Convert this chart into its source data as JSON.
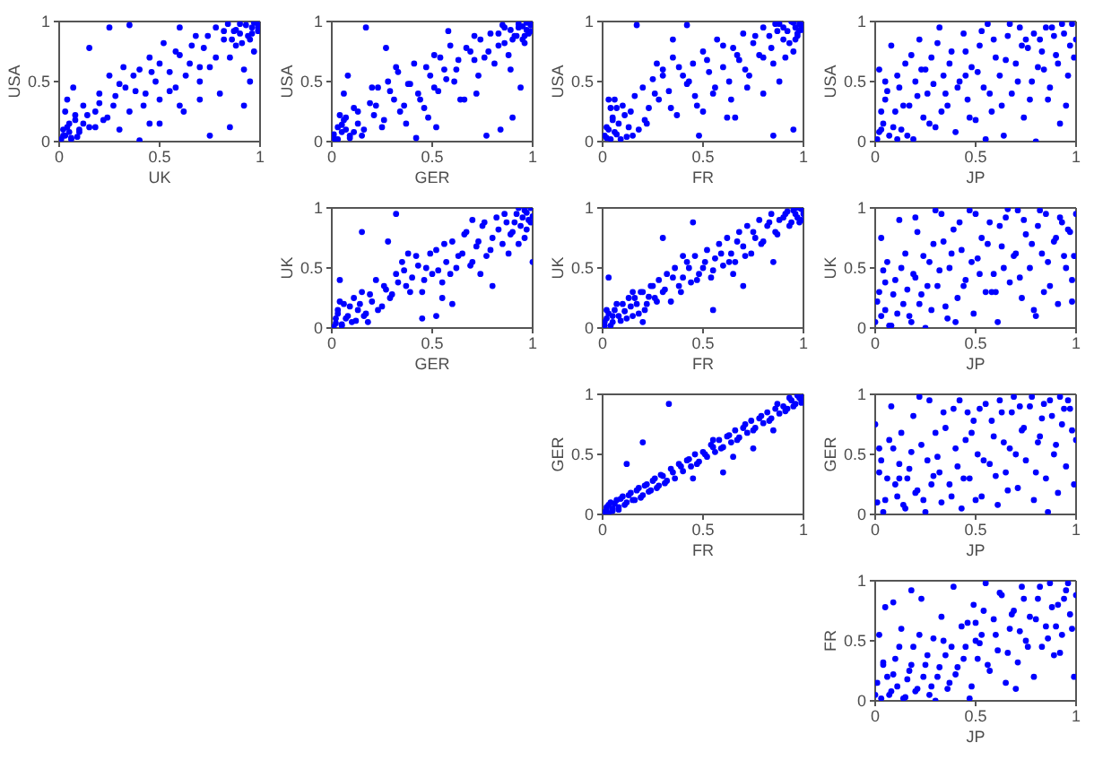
{
  "chart_data": [
    {
      "type": "scatter",
      "xlabel": "UK",
      "ylabel": "USA",
      "color": "#0000ff",
      "marker": "circle",
      "xlim": [
        0,
        1
      ],
      "ylim": [
        0,
        1
      ],
      "xticks": [
        0,
        0.5,
        1
      ],
      "yticks": [
        0,
        0.5,
        1
      ],
      "x": [
        0.01,
        0.02,
        0.03,
        0.05,
        0.06,
        0.08,
        0.1,
        0.12,
        0.04,
        0.15,
        0.18,
        0.2,
        0.22,
        0.25,
        0.27,
        0.3,
        0.32,
        0.35,
        0.38,
        0.4,
        0.42,
        0.45,
        0.48,
        0.5,
        0.52,
        0.55,
        0.58,
        0.6,
        0.62,
        0.65,
        0.68,
        0.7,
        0.72,
        0.75,
        0.78,
        0.8,
        0.82,
        0.85,
        0.87,
        0.9,
        0.92,
        0.94,
        0.96,
        0.98,
        0.99,
        1.0,
        0.97,
        0.88,
        0.15,
        0.25,
        0.35,
        0.75,
        0.85,
        0.92,
        0.4,
        0.07,
        0.6,
        0.3,
        0.5,
        0.95,
        0.02,
        0.04,
        0.06,
        0.08,
        0.1,
        0.03,
        0.05,
        0.12,
        0.14,
        0.09,
        0.2,
        0.24,
        0.28,
        0.33,
        0.37,
        0.43,
        0.46,
        0.5,
        0.55,
        0.58,
        0.63,
        0.66,
        0.7,
        0.74,
        0.78,
        0.82,
        0.86,
        0.9,
        0.93,
        0.95,
        0.97,
        0.99,
        0.84,
        0.88,
        0.91,
        0.96,
        0.6,
        0.45,
        0.18,
        0.7
      ],
      "values": [
        0.02,
        0.1,
        0.05,
        0.15,
        0.03,
        0.22,
        0.08,
        0.3,
        0.35,
        0.12,
        0.25,
        0.4,
        0.18,
        0.55,
        0.3,
        0.48,
        0.62,
        0.25,
        0.42,
        0.6,
        0.3,
        0.7,
        0.5,
        0.35,
        0.82,
        0.58,
        0.45,
        0.72,
        0.25,
        0.65,
        0.88,
        0.5,
        0.78,
        0.62,
        0.95,
        0.4,
        0.85,
        0.7,
        0.92,
        0.98,
        0.6,
        0.88,
        0.95,
        0.99,
        0.92,
        0.97,
        0.75,
        0.8,
        0.78,
        0.95,
        0.97,
        0.05,
        0.12,
        0.3,
        0.01,
        0.45,
        0.95,
        0.1,
        0.15,
        0.5,
        0.05,
        0.12,
        0.02,
        0.18,
        0.1,
        0.25,
        0.08,
        0.15,
        0.22,
        0.04,
        0.32,
        0.2,
        0.38,
        0.45,
        0.55,
        0.4,
        0.58,
        0.65,
        0.42,
        0.75,
        0.55,
        0.8,
        0.62,
        0.88,
        0.7,
        0.92,
        0.85,
        0.9,
        0.97,
        0.85,
        0.99,
        0.95,
        0.98,
        0.93,
        0.82,
        0.9,
        0.3,
        0.15,
        0.12,
        0.35
      ]
    },
    {
      "type": "scatter",
      "xlabel": "GER",
      "ylabel": "USA",
      "color": "#0000ff",
      "marker": "circle",
      "xlim": [
        0,
        1
      ],
      "ylim": [
        0,
        1
      ],
      "xticks": [
        0,
        0.5,
        1
      ],
      "yticks": [
        0,
        0.5,
        1
      ],
      "x": [
        0.01,
        0.03,
        0.02,
        0.05,
        0.07,
        0.09,
        0.11,
        0.13,
        0.06,
        0.16,
        0.19,
        0.21,
        0.23,
        0.26,
        0.28,
        0.31,
        0.33,
        0.36,
        0.39,
        0.41,
        0.43,
        0.46,
        0.49,
        0.51,
        0.53,
        0.56,
        0.59,
        0.61,
        0.63,
        0.66,
        0.69,
        0.71,
        0.73,
        0.76,
        0.79,
        0.81,
        0.83,
        0.86,
        0.88,
        0.91,
        0.93,
        0.95,
        0.97,
        0.99,
        0.98,
        1.0,
        0.96,
        0.89,
        0.17,
        0.27,
        0.37,
        0.77,
        0.84,
        0.9,
        0.42,
        0.08,
        0.58,
        0.32,
        0.52,
        0.94,
        0.01,
        0.03,
        0.05,
        0.07,
        0.09,
        0.04,
        0.06,
        0.11,
        0.13,
        0.15,
        0.22,
        0.25,
        0.29,
        0.34,
        0.38,
        0.44,
        0.47,
        0.51,
        0.54,
        0.57,
        0.62,
        0.67,
        0.71,
        0.74,
        0.78,
        0.83,
        0.86,
        0.89,
        0.92,
        0.95,
        0.97,
        0.99,
        0.85,
        0.9,
        0.93,
        0.96,
        0.64,
        0.48,
        0.2,
        0.72
      ],
      "values": [
        0.03,
        0.12,
        0.01,
        0.08,
        0.2,
        0.05,
        0.28,
        0.15,
        0.4,
        0.1,
        0.32,
        0.22,
        0.45,
        0.18,
        0.5,
        0.35,
        0.58,
        0.3,
        0.48,
        0.65,
        0.4,
        0.28,
        0.55,
        0.72,
        0.42,
        0.6,
        0.8,
        0.5,
        0.68,
        0.35,
        0.75,
        0.88,
        0.55,
        0.7,
        0.9,
        0.65,
        0.8,
        0.95,
        0.72,
        0.88,
        0.98,
        0.85,
        0.93,
        0.97,
        0.9,
        1.0,
        0.82,
        0.6,
        0.95,
        0.78,
        0.15,
        0.05,
        0.1,
        0.2,
        0.03,
        0.55,
        0.92,
        0.62,
        0.12,
        0.45,
        0.06,
        0.02,
        0.14,
        0.1,
        0.03,
        0.22,
        0.18,
        0.08,
        0.25,
        0.05,
        0.3,
        0.12,
        0.42,
        0.25,
        0.48,
        0.35,
        0.62,
        0.45,
        0.7,
        0.52,
        0.6,
        0.78,
        0.68,
        0.85,
        0.75,
        0.9,
        0.82,
        0.93,
        0.88,
        0.96,
        0.99,
        0.92,
        0.97,
        0.85,
        0.95,
        0.88,
        0.35,
        0.2,
        0.45,
        0.4
      ]
    },
    {
      "type": "scatter",
      "xlabel": "FR",
      "ylabel": "USA",
      "color": "#0000ff",
      "marker": "circle",
      "xlim": [
        0,
        1
      ],
      "ylim": [
        0,
        1
      ],
      "xticks": [
        0,
        0.5,
        1
      ],
      "yticks": [
        0,
        0.5,
        1
      ],
      "x": [
        0.01,
        0.02,
        0.04,
        0.05,
        0.06,
        0.08,
        0.1,
        0.12,
        0.14,
        0.16,
        0.18,
        0.2,
        0.23,
        0.25,
        0.28,
        0.3,
        0.33,
        0.35,
        0.37,
        0.4,
        0.42,
        0.45,
        0.47,
        0.5,
        0.53,
        0.55,
        0.57,
        0.6,
        0.63,
        0.65,
        0.68,
        0.7,
        0.73,
        0.75,
        0.78,
        0.8,
        0.83,
        0.85,
        0.88,
        0.9,
        0.92,
        0.94,
        0.96,
        0.97,
        0.98,
        0.99,
        1.0,
        0.95,
        0.17,
        0.42,
        0.85,
        0.95,
        0.03,
        0.22,
        0.62,
        0.72,
        0.48,
        0.88,
        0.35,
        0.07,
        0.02,
        0.03,
        0.05,
        0.07,
        0.09,
        0.11,
        0.04,
        0.13,
        0.15,
        0.06,
        0.21,
        0.26,
        0.3,
        0.34,
        0.38,
        0.43,
        0.46,
        0.52,
        0.56,
        0.6,
        0.64,
        0.67,
        0.71,
        0.76,
        0.8,
        0.84,
        0.87,
        0.9,
        0.93,
        0.95,
        0.97,
        0.99,
        0.96,
        0.98,
        0.91,
        0.86,
        0.5,
        0.66,
        0.27,
        0.8
      ],
      "values": [
        0.05,
        0.12,
        0.02,
        0.2,
        0.08,
        0.15,
        0.3,
        0.04,
        0.25,
        0.38,
        0.1,
        0.45,
        0.28,
        0.52,
        0.35,
        0.6,
        0.42,
        0.7,
        0.22,
        0.55,
        0.48,
        0.65,
        0.3,
        0.75,
        0.58,
        0.4,
        0.85,
        0.62,
        0.5,
        0.78,
        0.68,
        0.9,
        0.55,
        0.82,
        0.72,
        0.95,
        0.88,
        0.65,
        0.98,
        0.85,
        0.92,
        1.0,
        0.95,
        0.88,
        0.98,
        0.93,
        0.97,
        0.75,
        0.97,
        0.97,
        0.05,
        0.1,
        0.35,
        0.15,
        0.2,
        0.45,
        0.05,
        0.5,
        0.85,
        0.28,
        0.03,
        0.1,
        0.18,
        0.06,
        0.02,
        0.22,
        0.28,
        0.12,
        0.05,
        0.35,
        0.18,
        0.4,
        0.55,
        0.28,
        0.62,
        0.5,
        0.38,
        0.68,
        0.45,
        0.8,
        0.35,
        0.72,
        0.6,
        0.88,
        0.7,
        0.78,
        0.92,
        0.95,
        0.82,
        0.99,
        0.9,
        0.97,
        0.85,
        0.93,
        0.7,
        0.98,
        0.25,
        0.2,
        0.65,
        0.4
      ]
    },
    {
      "type": "scatter",
      "xlabel": "JP",
      "ylabel": "USA",
      "color": "#0000ff",
      "marker": "circle",
      "xlim": [
        0,
        1
      ],
      "ylim": [
        0,
        1
      ],
      "xticks": [
        0,
        0.5,
        1
      ],
      "yticks": [
        0,
        0.5,
        1
      ],
      "x": [
        0.01,
        0.02,
        0.04,
        0.05,
        0.07,
        0.08,
        0.1,
        0.12,
        0.13,
        0.15,
        0.17,
        0.19,
        0.2,
        0.22,
        0.24,
        0.26,
        0.28,
        0.3,
        0.32,
        0.34,
        0.36,
        0.38,
        0.4,
        0.42,
        0.44,
        0.46,
        0.48,
        0.5,
        0.52,
        0.54,
        0.56,
        0.58,
        0.6,
        0.62,
        0.64,
        0.66,
        0.68,
        0.7,
        0.72,
        0.74,
        0.76,
        0.78,
        0.8,
        0.82,
        0.84,
        0.86,
        0.88,
        0.9,
        0.92,
        0.94,
        0.96,
        0.98,
        1.0,
        0.03,
        0.11,
        0.35,
        0.55,
        0.75,
        0.95,
        0.25,
        0.02,
        0.03,
        0.06,
        0.09,
        0.11,
        0.14,
        0.16,
        0.18,
        0.21,
        0.23,
        0.27,
        0.29,
        0.31,
        0.33,
        0.37,
        0.41,
        0.45,
        0.47,
        0.51,
        0.53,
        0.57,
        0.59,
        0.63,
        0.65,
        0.67,
        0.71,
        0.73,
        0.77,
        0.79,
        0.81,
        0.83,
        0.85,
        0.87,
        0.89,
        0.91,
        0.93,
        0.97,
        0.99,
        0.05,
        0.45
      ],
      "values": [
        0.02,
        0.6,
        0.15,
        0.35,
        0.05,
        0.8,
        0.25,
        0.45,
        0.1,
        0.65,
        0.3,
        0.02,
        0.5,
        0.85,
        0.2,
        0.4,
        0.7,
        0.12,
        0.95,
        0.55,
        0.3,
        0.75,
        0.08,
        0.5,
        0.9,
        0.35,
        0.62,
        0.18,
        0.8,
        0.45,
        0.98,
        0.25,
        0.7,
        0.55,
        0.05,
        0.88,
        0.4,
        0.65,
        0.95,
        0.2,
        0.78,
        0.5,
        0.0,
        0.85,
        0.6,
        0.35,
        0.95,
        0.72,
        0.15,
        0.9,
        0.55,
        0.98,
        0.85,
        0.1,
        0.02,
        0.4,
        0.02,
        0.85,
        0.3,
        0.6,
        0.08,
        0.25,
        0.42,
        0.12,
        0.55,
        0.3,
        0.05,
        0.72,
        0.38,
        0.6,
        0.15,
        0.48,
        0.82,
        0.25,
        0.65,
        0.45,
        0.75,
        0.2,
        0.58,
        0.92,
        0.4,
        0.85,
        0.3,
        0.68,
        0.98,
        0.5,
        0.8,
        0.35,
        0.9,
        0.62,
        0.75,
        0.95,
        0.45,
        0.88,
        0.65,
        0.98,
        0.8,
        0.7,
        0.5,
        0.55
      ]
    },
    {
      "type": "scatter",
      "xlabel": "GER",
      "ylabel": "UK",
      "color": "#0000ff",
      "marker": "circle",
      "xlim": [
        0,
        1
      ],
      "ylim": [
        0,
        1
      ],
      "xticks": [
        0,
        0.5,
        1
      ],
      "yticks": [
        0,
        0.5,
        1
      ],
      "x": [
        0.01,
        0.02,
        0.03,
        0.05,
        0.06,
        0.08,
        0.1,
        0.11,
        0.13,
        0.15,
        0.17,
        0.2,
        0.22,
        0.25,
        0.27,
        0.3,
        0.32,
        0.35,
        0.37,
        0.4,
        0.42,
        0.45,
        0.47,
        0.5,
        0.52,
        0.55,
        0.57,
        0.6,
        0.62,
        0.65,
        0.67,
        0.7,
        0.72,
        0.75,
        0.77,
        0.8,
        0.82,
        0.85,
        0.87,
        0.9,
        0.92,
        0.94,
        0.96,
        0.98,
        0.99,
        1.0,
        0.97,
        0.32,
        0.15,
        0.8,
        1.0,
        0.04,
        0.45,
        0.6,
        0.18,
        0.88,
        0.28,
        0.7,
        0.52,
        0.93,
        0.02,
        0.03,
        0.05,
        0.07,
        0.09,
        0.04,
        0.12,
        0.14,
        0.16,
        0.19,
        0.23,
        0.26,
        0.29,
        0.33,
        0.36,
        0.39,
        0.43,
        0.46,
        0.49,
        0.53,
        0.56,
        0.59,
        0.63,
        0.66,
        0.69,
        0.73,
        0.76,
        0.79,
        0.83,
        0.86,
        0.89,
        0.91,
        0.93,
        0.95,
        0.97,
        0.99,
        0.96,
        0.55,
        0.38,
        0.74
      ],
      "values": [
        0.01,
        0.08,
        0.15,
        0.03,
        0.2,
        0.1,
        0.05,
        0.25,
        0.15,
        0.3,
        0.12,
        0.22,
        0.4,
        0.18,
        0.32,
        0.28,
        0.45,
        0.55,
        0.35,
        0.42,
        0.6,
        0.3,
        0.5,
        0.45,
        0.65,
        0.38,
        0.55,
        0.72,
        0.5,
        0.62,
        0.8,
        0.55,
        0.68,
        0.85,
        0.6,
        0.75,
        0.92,
        0.7,
        0.88,
        0.8,
        0.95,
        0.85,
        0.98,
        0.9,
        1.0,
        0.93,
        0.82,
        0.95,
        0.8,
        0.35,
        0.55,
        0.4,
        0.08,
        0.2,
        0.05,
        0.62,
        0.72,
        0.9,
        0.1,
        0.7,
        0.04,
        0.12,
        0.02,
        0.08,
        0.18,
        0.22,
        0.06,
        0.2,
        0.1,
        0.28,
        0.15,
        0.35,
        0.25,
        0.38,
        0.48,
        0.3,
        0.52,
        0.4,
        0.62,
        0.48,
        0.7,
        0.45,
        0.6,
        0.78,
        0.52,
        0.72,
        0.88,
        0.65,
        0.82,
        0.95,
        0.78,
        0.88,
        1.0,
        0.92,
        0.96,
        0.88,
        0.75,
        0.25,
        0.62,
        0.45
      ]
    },
    {
      "type": "scatter",
      "xlabel": "FR",
      "ylabel": "UK",
      "color": "#0000ff",
      "marker": "circle",
      "xlim": [
        0,
        1
      ],
      "ylim": [
        0,
        1
      ],
      "xticks": [
        0,
        0.5,
        1
      ],
      "yticks": [
        0,
        0.5,
        1
      ],
      "x": [
        0.01,
        0.02,
        0.03,
        0.05,
        0.06,
        0.08,
        0.1,
        0.12,
        0.14,
        0.16,
        0.18,
        0.2,
        0.22,
        0.24,
        0.26,
        0.28,
        0.3,
        0.32,
        0.34,
        0.36,
        0.38,
        0.4,
        0.42,
        0.44,
        0.46,
        0.48,
        0.5,
        0.52,
        0.54,
        0.56,
        0.58,
        0.6,
        0.62,
        0.64,
        0.66,
        0.68,
        0.7,
        0.72,
        0.74,
        0.76,
        0.78,
        0.8,
        0.82,
        0.84,
        0.86,
        0.88,
        0.9,
        0.92,
        0.94,
        0.96,
        0.98,
        1.0,
        0.99,
        0.03,
        0.3,
        0.55,
        0.7,
        0.85,
        0.45,
        0.2,
        0.01,
        0.02,
        0.04,
        0.05,
        0.07,
        0.09,
        0.11,
        0.13,
        0.15,
        0.17,
        0.19,
        0.21,
        0.23,
        0.25,
        0.27,
        0.31,
        0.35,
        0.39,
        0.43,
        0.47,
        0.51,
        0.55,
        0.59,
        0.63,
        0.67,
        0.71,
        0.75,
        0.79,
        0.83,
        0.87,
        0.91,
        0.93,
        0.95,
        0.97,
        0.99,
        0.98,
        0.96,
        0.65,
        0.4,
        0.15
      ],
      "values": [
        0.02,
        0.08,
        0.12,
        0.05,
        0.15,
        0.1,
        0.2,
        0.08,
        0.18,
        0.25,
        0.12,
        0.3,
        0.2,
        0.35,
        0.25,
        0.4,
        0.3,
        0.45,
        0.22,
        0.5,
        0.35,
        0.42,
        0.55,
        0.38,
        0.6,
        0.45,
        0.5,
        0.65,
        0.42,
        0.58,
        0.7,
        0.52,
        0.75,
        0.62,
        0.55,
        0.8,
        0.68,
        0.85,
        0.62,
        0.75,
        0.9,
        0.72,
        0.85,
        0.95,
        0.8,
        0.9,
        0.92,
        0.97,
        0.88,
        0.95,
        1.0,
        0.95,
        0.9,
        0.42,
        0.75,
        0.15,
        0.35,
        0.55,
        0.88,
        0.05,
        0.05,
        0.15,
        0.02,
        0.1,
        0.2,
        0.06,
        0.14,
        0.25,
        0.1,
        0.2,
        0.3,
        0.15,
        0.26,
        0.35,
        0.22,
        0.32,
        0.42,
        0.3,
        0.5,
        0.4,
        0.55,
        0.48,
        0.62,
        0.55,
        0.72,
        0.6,
        0.8,
        0.7,
        0.88,
        0.78,
        0.95,
        0.85,
        0.98,
        0.92,
        0.99,
        0.88,
        1.0,
        0.45,
        0.6,
        0.3
      ]
    },
    {
      "type": "scatter",
      "xlabel": "JP",
      "ylabel": "UK",
      "color": "#0000ff",
      "marker": "circle",
      "xlim": [
        0,
        1
      ],
      "ylim": [
        0,
        1
      ],
      "xticks": [
        0,
        0.5,
        1
      ],
      "yticks": [
        0,
        0.5,
        1
      ],
      "x": [
        0.0,
        0.02,
        0.03,
        0.05,
        0.06,
        0.08,
        0.1,
        0.12,
        0.14,
        0.15,
        0.17,
        0.19,
        0.21,
        0.23,
        0.25,
        0.27,
        0.29,
        0.31,
        0.33,
        0.35,
        0.37,
        0.39,
        0.41,
        0.43,
        0.45,
        0.47,
        0.49,
        0.51,
        0.53,
        0.55,
        0.57,
        0.59,
        0.61,
        0.63,
        0.65,
        0.67,
        0.69,
        0.71,
        0.73,
        0.75,
        0.77,
        0.79,
        0.81,
        0.83,
        0.85,
        0.87,
        0.89,
        0.91,
        0.93,
        0.95,
        0.97,
        0.99,
        1.0,
        0.04,
        0.2,
        0.4,
        0.6,
        0.8,
        0.98,
        0.3,
        0.01,
        0.03,
        0.05,
        0.07,
        0.09,
        0.11,
        0.13,
        0.16,
        0.18,
        0.2,
        0.22,
        0.24,
        0.26,
        0.28,
        0.32,
        0.34,
        0.36,
        0.38,
        0.42,
        0.44,
        0.48,
        0.5,
        0.52,
        0.56,
        0.58,
        0.62,
        0.64,
        0.66,
        0.7,
        0.72,
        0.74,
        0.78,
        0.82,
        0.84,
        0.86,
        0.9,
        0.92,
        0.94,
        0.96,
        0.98
      ],
      "values": [
        0.05,
        0.3,
        0.75,
        0.15,
        0.55,
        0.02,
        0.4,
        0.9,
        0.2,
        0.62,
        0.1,
        0.45,
        0.8,
        0.28,
        0.0,
        0.55,
        0.7,
        0.35,
        0.95,
        0.18,
        0.5,
        0.82,
        0.25,
        0.65,
        0.4,
        0.98,
        0.12,
        0.58,
        0.75,
        0.3,
        0.88,
        0.45,
        0.05,
        0.68,
        0.92,
        0.38,
        0.6,
        0.98,
        0.25,
        0.78,
        0.5,
        0.15,
        0.85,
        0.62,
        0.95,
        0.35,
        0.72,
        0.2,
        0.88,
        0.5,
        0.8,
        0.6,
        0.95,
        0.48,
        0.92,
        0.05,
        0.3,
        0.1,
        0.4,
        0.98,
        0.22,
        0.1,
        0.38,
        0.02,
        0.28,
        0.12,
        0.5,
        0.32,
        0.05,
        0.42,
        0.2,
        0.6,
        0.35,
        0.15,
        0.48,
        0.72,
        0.08,
        0.62,
        0.88,
        0.35,
        0.55,
        0.95,
        0.45,
        0.7,
        0.3,
        0.85,
        0.5,
        0.99,
        0.62,
        0.42,
        0.9,
        0.7,
        0.98,
        0.3,
        0.55,
        0.75,
        0.92,
        0.6,
        0.82,
        0.22
      ]
    },
    {
      "type": "scatter",
      "xlabel": "FR",
      "ylabel": "GER",
      "color": "#0000ff",
      "marker": "circle",
      "xlim": [
        0,
        1
      ],
      "ylim": [
        0,
        1
      ],
      "xticks": [
        0,
        0.5,
        1
      ],
      "yticks": [
        0,
        0.5,
        1
      ],
      "x": [
        0.01,
        0.02,
        0.03,
        0.04,
        0.05,
        0.07,
        0.08,
        0.1,
        0.12,
        0.14,
        0.16,
        0.18,
        0.2,
        0.22,
        0.24,
        0.26,
        0.28,
        0.3,
        0.32,
        0.34,
        0.36,
        0.38,
        0.4,
        0.42,
        0.44,
        0.46,
        0.48,
        0.5,
        0.52,
        0.54,
        0.56,
        0.58,
        0.6,
        0.62,
        0.64,
        0.66,
        0.68,
        0.7,
        0.72,
        0.74,
        0.76,
        0.78,
        0.8,
        0.82,
        0.84,
        0.86,
        0.88,
        0.9,
        0.92,
        0.94,
        0.96,
        0.98,
        1.0,
        0.99,
        0.33,
        0.2,
        0.12,
        0.6,
        0.75,
        0.45,
        0.02,
        0.03,
        0.05,
        0.06,
        0.08,
        0.09,
        0.11,
        0.13,
        0.15,
        0.17,
        0.19,
        0.21,
        0.23,
        0.25,
        0.27,
        0.29,
        0.31,
        0.35,
        0.39,
        0.43,
        0.47,
        0.51,
        0.55,
        0.59,
        0.63,
        0.67,
        0.71,
        0.75,
        0.79,
        0.83,
        0.87,
        0.91,
        0.93,
        0.95,
        0.97,
        0.99,
        0.65,
        0.85,
        0.55
      ],
      "values": [
        0.02,
        0.06,
        0.01,
        0.1,
        0.05,
        0.12,
        0.04,
        0.15,
        0.1,
        0.18,
        0.12,
        0.22,
        0.16,
        0.25,
        0.2,
        0.3,
        0.24,
        0.32,
        0.28,
        0.38,
        0.3,
        0.42,
        0.36,
        0.45,
        0.4,
        0.5,
        0.44,
        0.52,
        0.48,
        0.58,
        0.52,
        0.62,
        0.56,
        0.65,
        0.6,
        0.7,
        0.64,
        0.72,
        0.68,
        0.78,
        0.72,
        0.8,
        0.76,
        0.85,
        0.8,
        0.88,
        0.84,
        0.9,
        0.88,
        0.95,
        0.92,
        0.97,
        0.98,
        0.93,
        0.92,
        0.6,
        0.42,
        0.35,
        0.55,
        0.3,
        0.04,
        0.08,
        0.03,
        0.09,
        0.06,
        0.13,
        0.08,
        0.16,
        0.12,
        0.2,
        0.14,
        0.24,
        0.19,
        0.28,
        0.22,
        0.33,
        0.26,
        0.35,
        0.4,
        0.46,
        0.42,
        0.5,
        0.56,
        0.55,
        0.66,
        0.62,
        0.75,
        0.7,
        0.82,
        0.78,
        0.92,
        0.86,
        0.97,
        0.9,
        0.99,
        0.95,
        0.48,
        0.7,
        0.62
      ]
    },
    {
      "type": "scatter",
      "xlabel": "JP",
      "ylabel": "GER",
      "color": "#0000ff",
      "marker": "circle",
      "xlim": [
        0,
        1
      ],
      "ylim": [
        0,
        1
      ],
      "xticks": [
        0,
        0.5,
        1
      ],
      "yticks": [
        0,
        0.5,
        1
      ],
      "x": [
        0.0,
        0.01,
        0.03,
        0.04,
        0.06,
        0.08,
        0.09,
        0.11,
        0.13,
        0.15,
        0.17,
        0.19,
        0.21,
        0.23,
        0.25,
        0.27,
        0.29,
        0.31,
        0.33,
        0.35,
        0.37,
        0.39,
        0.41,
        0.43,
        0.45,
        0.47,
        0.49,
        0.51,
        0.53,
        0.55,
        0.57,
        0.59,
        0.61,
        0.63,
        0.65,
        0.67,
        0.69,
        0.71,
        0.73,
        0.75,
        0.77,
        0.79,
        0.81,
        0.83,
        0.85,
        0.87,
        0.89,
        0.91,
        0.93,
        0.95,
        0.97,
        0.99,
        1.0,
        0.02,
        0.22,
        0.46,
        0.66,
        0.86,
        0.96,
        0.12,
        0.02,
        0.05,
        0.07,
        0.1,
        0.12,
        0.14,
        0.16,
        0.18,
        0.2,
        0.24,
        0.26,
        0.28,
        0.3,
        0.32,
        0.34,
        0.38,
        0.4,
        0.42,
        0.44,
        0.48,
        0.5,
        0.52,
        0.54,
        0.58,
        0.6,
        0.62,
        0.64,
        0.68,
        0.7,
        0.72,
        0.74,
        0.78,
        0.8,
        0.82,
        0.84,
        0.88,
        0.9,
        0.92,
        0.94,
        0.98
      ],
      "values": [
        0.75,
        0.1,
        0.45,
        0.02,
        0.3,
        0.9,
        0.55,
        0.15,
        0.68,
        0.05,
        0.38,
        0.82,
        0.2,
        0.58,
        0.02,
        0.95,
        0.32,
        0.48,
        0.1,
        0.72,
        0.25,
        0.88,
        0.4,
        0.05,
        0.62,
        0.3,
        0.78,
        0.5,
        0.15,
        0.92,
        0.42,
        0.65,
        0.08,
        0.85,
        0.35,
        0.55,
        0.98,
        0.22,
        0.7,
        0.45,
        0.9,
        0.12,
        0.6,
        0.8,
        0.3,
        0.95,
        0.5,
        0.18,
        0.75,
        0.4,
        0.88,
        0.25,
        0.62,
        0.55,
        0.98,
        0.85,
        0.2,
        0.02,
        0.95,
        0.3,
        0.35,
        0.12,
        0.62,
        0.25,
        0.42,
        0.08,
        0.3,
        0.52,
        0.18,
        0.12,
        0.45,
        0.25,
        0.68,
        0.35,
        0.85,
        0.15,
        0.55,
        0.95,
        0.3,
        0.68,
        0.12,
        0.88,
        0.45,
        0.78,
        0.32,
        0.95,
        0.6,
        0.85,
        0.5,
        0.9,
        0.72,
        0.98,
        0.35,
        0.65,
        0.92,
        0.82,
        0.58,
        0.98,
        0.88,
        0.7
      ]
    },
    {
      "type": "scatter",
      "xlabel": "JP",
      "ylabel": "FR",
      "color": "#0000ff",
      "marker": "circle",
      "xlim": [
        0,
        1
      ],
      "ylim": [
        0,
        1
      ],
      "xticks": [
        0,
        0.5,
        1
      ],
      "yticks": [
        0,
        0.5,
        1
      ],
      "x": [
        0.0,
        0.02,
        0.03,
        0.05,
        0.06,
        0.08,
        0.1,
        0.11,
        0.13,
        0.15,
        0.17,
        0.19,
        0.21,
        0.23,
        0.25,
        0.27,
        0.29,
        0.31,
        0.33,
        0.35,
        0.37,
        0.39,
        0.41,
        0.43,
        0.45,
        0.47,
        0.49,
        0.51,
        0.53,
        0.55,
        0.57,
        0.59,
        0.61,
        0.63,
        0.65,
        0.67,
        0.69,
        0.71,
        0.73,
        0.75,
        0.77,
        0.79,
        0.81,
        0.83,
        0.85,
        0.87,
        0.89,
        0.91,
        0.93,
        0.95,
        0.97,
        0.99,
        1.0,
        0.04,
        0.09,
        0.3,
        0.5,
        0.7,
        0.92,
        0.18,
        0.01,
        0.04,
        0.07,
        0.09,
        0.12,
        0.14,
        0.16,
        0.18,
        0.2,
        0.22,
        0.24,
        0.26,
        0.28,
        0.32,
        0.34,
        0.36,
        0.38,
        0.4,
        0.44,
        0.46,
        0.48,
        0.52,
        0.54,
        0.56,
        0.6,
        0.62,
        0.66,
        0.68,
        0.72,
        0.74,
        0.76,
        0.8,
        0.82,
        0.86,
        0.88,
        0.9,
        0.94,
        0.96,
        0.98,
        0.5
      ],
      "values": [
        0.05,
        0.55,
        0.02,
        0.78,
        0.2,
        0.08,
        0.35,
        0.12,
        0.6,
        0.03,
        0.25,
        0.45,
        0.1,
        0.85,
        0.3,
        0.05,
        0.52,
        0.2,
        0.7,
        0.38,
        0.15,
        0.95,
        0.28,
        0.62,
        0.45,
        0.02,
        0.8,
        0.35,
        0.55,
        0.98,
        0.25,
        0.68,
        0.42,
        0.88,
        0.15,
        0.6,
        0.75,
        0.32,
        0.95,
        0.5,
        0.7,
        0.2,
        0.85,
        0.45,
        0.62,
        0.98,
        0.38,
        0.8,
        0.55,
        0.92,
        0.72,
        0.2,
        0.88,
        0.3,
        0.82,
        0.0,
        0.65,
        0.1,
        0.4,
        0.92,
        0.15,
        0.32,
        0.05,
        0.22,
        0.45,
        0.02,
        0.18,
        0.3,
        0.08,
        0.55,
        0.2,
        0.38,
        0.12,
        0.28,
        0.5,
        0.1,
        0.45,
        0.22,
        0.35,
        0.65,
        0.12,
        0.48,
        0.75,
        0.3,
        0.55,
        0.9,
        0.4,
        0.72,
        0.58,
        0.85,
        0.45,
        0.68,
        0.95,
        0.52,
        0.78,
        0.62,
        0.85,
        0.98,
        0.6,
        0.5
      ]
    }
  ]
}
